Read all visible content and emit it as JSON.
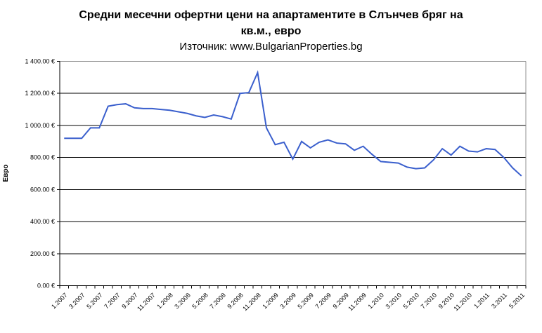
{
  "header": {
    "title_line1": "Средни месечни офертни цени на апартаментите в Слънчев бряг на",
    "title_line2": "кв.м., евро",
    "source": "Източник: www.BulgarianProperties.bg"
  },
  "chart_data": {
    "type": "line",
    "title": "Средни месечни офертни цени на апартаментите в Слънчев бряг на кв.м., евро",
    "subtitle": "Източник: www.BulgarianProperties.bg",
    "xlabel": "",
    "ylabel": "Евро",
    "ylim": [
      0,
      1400
    ],
    "y_ticks": [
      0,
      200,
      400,
      600,
      800,
      1000,
      1200,
      1400
    ],
    "y_tick_labels": [
      "0.00 €",
      "200.00 €",
      "400.00 €",
      "600.00 €",
      "800.00 €",
      "1 000.00 €",
      "1 200.00 €",
      "1 400.00 €"
    ],
    "x_label_every": 2,
    "grid": true,
    "legend": "none",
    "line_color": "#3A5FCD",
    "gridline_color": "#000000",
    "border_color": "#909090",
    "categories": [
      "1.2007",
      "2.2007",
      "3.2007",
      "4.2007",
      "5.2007",
      "6.2007",
      "7.2007",
      "8.2007",
      "9.2007",
      "10.2007",
      "11.2007",
      "12.2007",
      "1.2008",
      "2.2008",
      "3.2008",
      "4.2008",
      "5.2008",
      "6.2008",
      "7.2008",
      "8.2008",
      "9.2008",
      "10.2008",
      "11.2008",
      "12.2008",
      "1.2009",
      "2.2009",
      "3.2009",
      "4.2009",
      "5.2009",
      "6.2009",
      "7.2009",
      "8.2009",
      "9.2009",
      "10.2009",
      "11.2009",
      "12.2009",
      "1.2010",
      "2.2010",
      "3.2010",
      "4.2010",
      "5.2010",
      "6.2010",
      "7.2010",
      "8.2010",
      "9.2010",
      "10.2010",
      "11.2010",
      "12.2010",
      "1.2011",
      "2.2011",
      "3.2011",
      "4.2011",
      "5.2011"
    ],
    "values": [
      920,
      920,
      920,
      985,
      985,
      1120,
      1130,
      1135,
      1110,
      1105,
      1105,
      1100,
      1095,
      1085,
      1075,
      1060,
      1050,
      1065,
      1055,
      1040,
      1200,
      1205,
      1330,
      985,
      880,
      895,
      790,
      900,
      860,
      895,
      910,
      890,
      885,
      845,
      870,
      820,
      775,
      770,
      765,
      740,
      730,
      735,
      785,
      855,
      815,
      870,
      840,
      835,
      855,
      850,
      800,
      735,
      685
    ]
  }
}
